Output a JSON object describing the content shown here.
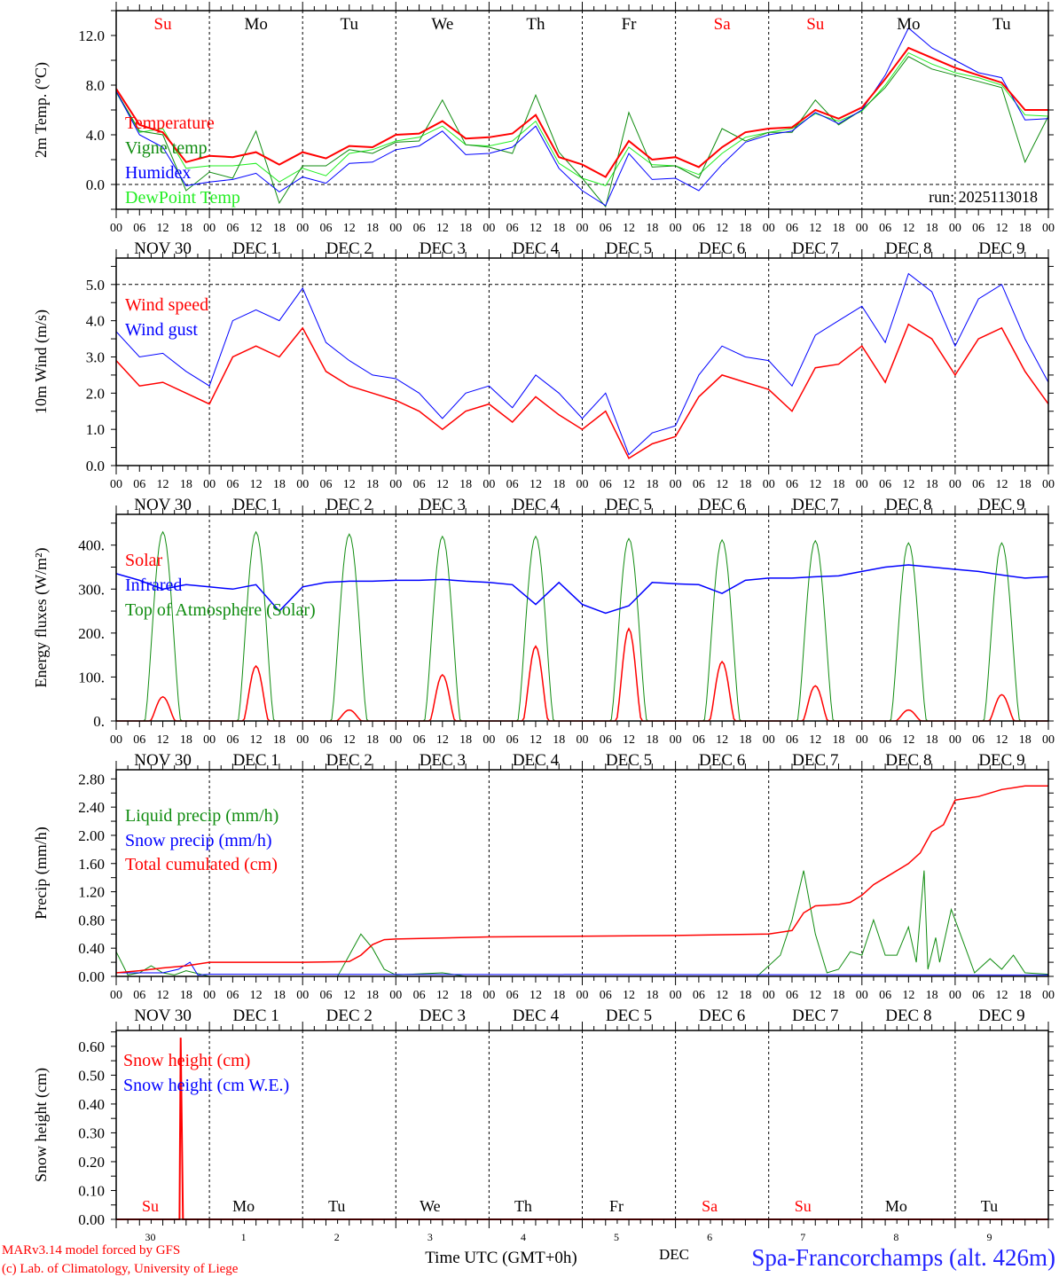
{
  "run_label": "run: 2025113018",
  "day_names": [
    {
      "text": "Su",
      "color": "#ff0000"
    },
    {
      "text": "Mo",
      "color": "#000000"
    },
    {
      "text": "Tu",
      "color": "#000000"
    },
    {
      "text": "We",
      "color": "#000000"
    },
    {
      "text": "Th",
      "color": "#000000"
    },
    {
      "text": "Fr",
      "color": "#000000"
    },
    {
      "text": "Sa",
      "color": "#ff0000"
    },
    {
      "text": "Su",
      "color": "#ff0000"
    },
    {
      "text": "Mo",
      "color": "#000000"
    },
    {
      "text": "Tu",
      "color": "#000000"
    }
  ],
  "date_labels": [
    "NOV 30",
    "DEC  1",
    "DEC  2",
    "DEC  3",
    "DEC  4",
    "DEC  5",
    "DEC  6",
    "DEC  7",
    "DEC  8",
    "DEC  9"
  ],
  "hour_labels": [
    "00",
    "06",
    "12",
    "18"
  ],
  "bottom_day_numbers": [
    "30",
    "1",
    "2",
    "3",
    "4",
    "5",
    "6",
    "7",
    "8",
    "9"
  ],
  "bottom_month": "DEC",
  "xlabel": "Time UTC (GMT+0h)",
  "station": "Spa-Francorchamps (alt. 426m)",
  "credits": [
    "MARv3.14 model forced by GFS",
    "(c) Lab. of Climatology, University of Liege"
  ],
  "chart_data": [
    {
      "type": "line",
      "ylabel": "2m Temp. (°C)",
      "ylim": [
        -2,
        14
      ],
      "minor": 2,
      "dashed_y": 0,
      "yticks": [
        {
          "v": 0,
          "label": "0.0"
        },
        {
          "v": 4,
          "label": "4.0"
        },
        {
          "v": 8,
          "label": "8.0"
        },
        {
          "v": 12,
          "label": "12.0"
        }
      ],
      "x_step_hours": 6,
      "legend": [
        {
          "text": "Temperature",
          "color": "#ff0000"
        },
        {
          "text": "Vigne temp",
          "color": "#108c10"
        },
        {
          "text": "Humidex",
          "color": "#0000ff"
        },
        {
          "text": "DewPoint Temp",
          "color": "#22ee22"
        }
      ],
      "series": [
        {
          "name": "DewPoint Temp",
          "color": "#22ee22",
          "width": 1,
          "values": [
            7.4,
            4.2,
            4.5,
            1.3,
            1.5,
            1.5,
            1.7,
            0.2,
            1.3,
            0.7,
            2.5,
            2.8,
            3.5,
            3.8,
            4.7,
            3.2,
            3.1,
            3.5,
            5.1,
            1.7,
            0.5,
            -0.1,
            3.0,
            1.6,
            1.5,
            0.8,
            2.5,
            3.8,
            4.2,
            4.5,
            5.7,
            5.1,
            5.9,
            8.0,
            10.6,
            9.7,
            9.0,
            8.6,
            8.0,
            5.6,
            5.5
          ]
        },
        {
          "name": "Vigne temp",
          "color": "#108c10",
          "width": 1,
          "values": [
            7.5,
            4.3,
            4.0,
            -0.5,
            1.0,
            0.5,
            4.3,
            -1.5,
            1.5,
            1.5,
            2.8,
            2.5,
            3.4,
            3.5,
            6.8,
            3.2,
            3.0,
            2.5,
            7.2,
            2.6,
            0.5,
            -1.8,
            5.8,
            1.4,
            1.5,
            0.5,
            4.5,
            3.5,
            4.2,
            4.2,
            6.8,
            4.8,
            6.0,
            7.8,
            10.3,
            9.3,
            8.8,
            8.3,
            7.8,
            1.8,
            5.5
          ]
        },
        {
          "name": "Humidex",
          "color": "#0000ff",
          "width": 1,
          "values": [
            7.5,
            4.0,
            3.0,
            -0.1,
            0.2,
            0.4,
            0.9,
            -0.6,
            0.6,
            0.1,
            1.7,
            1.8,
            2.8,
            3.1,
            4.3,
            2.4,
            2.5,
            3.0,
            4.7,
            1.3,
            -0.5,
            -1.7,
            2.5,
            0.4,
            0.5,
            -0.5,
            1.6,
            3.4,
            4.0,
            4.3,
            5.8,
            4.9,
            6.0,
            8.8,
            12.6,
            11.0,
            10.0,
            9.0,
            8.6,
            5.2,
            5.3
          ]
        },
        {
          "name": "Temperature",
          "color": "#ff0000",
          "width": 2,
          "values": [
            7.7,
            4.8,
            4.2,
            1.8,
            2.3,
            2.2,
            2.6,
            1.6,
            2.6,
            2.1,
            3.1,
            3.0,
            4.0,
            4.1,
            5.1,
            3.7,
            3.8,
            4.1,
            5.6,
            2.2,
            1.6,
            0.6,
            3.5,
            2.0,
            2.2,
            1.4,
            3.0,
            4.2,
            4.5,
            4.6,
            6.0,
            5.3,
            6.2,
            8.5,
            11.0,
            10.2,
            9.4,
            8.8,
            8.2,
            6.0,
            6.0
          ]
        }
      ]
    },
    {
      "type": "line",
      "ylabel": "10m Wind (m/s)",
      "ylim": [
        0,
        5.73
      ],
      "minor": 0.5,
      "dashed_y": 5,
      "yticks": [
        {
          "v": 0,
          "label": "0.0"
        },
        {
          "v": 1,
          "label": "1.0"
        },
        {
          "v": 2,
          "label": "2.0"
        },
        {
          "v": 3,
          "label": "3.0"
        },
        {
          "v": 4,
          "label": "4.0"
        },
        {
          "v": 5,
          "label": "5.0"
        }
      ],
      "x_step_hours": 6,
      "legend": [
        {
          "text": "Wind speed",
          "color": "#ff0000"
        },
        {
          "text": "Wind gust",
          "color": "#0000ff"
        }
      ],
      "series": [
        {
          "name": "Wind gust",
          "color": "#0000ff",
          "width": 1,
          "values": [
            3.7,
            3.0,
            3.1,
            2.6,
            2.2,
            4.0,
            4.3,
            4.0,
            4.9,
            3.4,
            2.9,
            2.5,
            2.4,
            2.0,
            1.3,
            2.0,
            2.2,
            1.6,
            2.5,
            2.0,
            1.3,
            2.0,
            0.3,
            0.9,
            1.1,
            2.5,
            3.3,
            3.0,
            2.9,
            2.2,
            3.6,
            4.0,
            4.4,
            3.4,
            5.3,
            4.8,
            3.3,
            4.6,
            5.0,
            3.5,
            2.3
          ]
        },
        {
          "name": "Wind speed",
          "color": "#ff0000",
          "width": 1.5,
          "values": [
            2.9,
            2.2,
            2.3,
            2.0,
            1.7,
            3.0,
            3.3,
            3.0,
            3.8,
            2.6,
            2.2,
            2.0,
            1.8,
            1.5,
            1.0,
            1.5,
            1.7,
            1.2,
            1.9,
            1.4,
            1.0,
            1.5,
            0.2,
            0.6,
            0.8,
            1.9,
            2.5,
            2.3,
            2.1,
            1.5,
            2.7,
            2.8,
            3.3,
            2.3,
            3.9,
            3.5,
            2.5,
            3.5,
            3.8,
            2.6,
            1.7
          ]
        }
      ]
    },
    {
      "type": "line",
      "ylabel": "Energy fluxes (W/m²)",
      "ylim": [
        0,
        470
      ],
      "minor": 50,
      "yticks": [
        {
          "v": 0,
          "label": "0."
        },
        {
          "v": 100,
          "label": "100."
        },
        {
          "v": 200,
          "label": "200."
        },
        {
          "v": 300,
          "label": "300."
        },
        {
          "v": 400,
          "label": "400."
        }
      ],
      "legend": [
        {
          "text": "Solar",
          "color": "#ff0000"
        },
        {
          "text": "Infrared",
          "color": "#0000ff"
        },
        {
          "text": "Top of Atmosphere (Solar)",
          "color": "#108c10"
        }
      ],
      "series": [
        {
          "name": "Top of Atmosphere (Solar)",
          "color": "#108c10",
          "width": 1,
          "daily_peaks": [
            430,
            430,
            425,
            420,
            420,
            415,
            412,
            410,
            405,
            405
          ],
          "half_width_h": 4.6
        },
        {
          "name": "Solar",
          "color": "#ff0000",
          "width": 1.5,
          "daily_peaks": [
            55,
            125,
            25,
            105,
            170,
            210,
            135,
            80,
            25,
            60
          ],
          "half_width_h": 3.2
        },
        {
          "name": "Infrared",
          "color": "#0000ff",
          "width": 1.5,
          "x_step_hours": 6,
          "values": [
            335,
            320,
            300,
            310,
            305,
            300,
            310,
            250,
            305,
            315,
            318,
            318,
            320,
            320,
            322,
            318,
            315,
            310,
            265,
            315,
            265,
            245,
            262,
            315,
            312,
            310,
            290,
            320,
            325,
            325,
            328,
            330,
            340,
            350,
            355,
            350,
            345,
            340,
            332,
            325,
            328
          ]
        }
      ]
    },
    {
      "type": "line",
      "ylabel": "Precip (mm/h)",
      "ylim": [
        0,
        2.93
      ],
      "minor": 0.2,
      "yticks": [
        {
          "v": 0,
          "label": "0.00"
        },
        {
          "v": 0.4,
          "label": "0.40"
        },
        {
          "v": 0.8,
          "label": "0.80"
        },
        {
          "v": 1.2,
          "label": "1.20"
        },
        {
          "v": 1.6,
          "label": "1.60"
        },
        {
          "v": 2.0,
          "label": "2.00"
        },
        {
          "v": 2.4,
          "label": "2.40"
        },
        {
          "v": 2.8,
          "label": "2.80"
        }
      ],
      "legend": [
        {
          "text": "Liquid precip (mm/h)",
          "color": "#108c10"
        },
        {
          "text": "Snow precip (mm/h)",
          "color": "#0000ff"
        },
        {
          "text": "Total cumulated (cm)",
          "color": "#ff0000"
        }
      ],
      "series": [
        {
          "name": "Liquid precip",
          "color": "#108c10",
          "width": 1,
          "points": [
            [
              0,
              0.35
            ],
            [
              3,
              0.02
            ],
            [
              6,
              0.05
            ],
            [
              9,
              0.15
            ],
            [
              12,
              0.05
            ],
            [
              15,
              0.02
            ],
            [
              18,
              0.08
            ],
            [
              24,
              0
            ],
            [
              57,
              0
            ],
            [
              60,
              0.3
            ],
            [
              63,
              0.6
            ],
            [
              66,
              0.4
            ],
            [
              69,
              0.1
            ],
            [
              72,
              0.02
            ],
            [
              84,
              0.05
            ],
            [
              90,
              0
            ],
            [
              165,
              0
            ],
            [
              171,
              0.3
            ],
            [
              174,
              0.8
            ],
            [
              177,
              1.5
            ],
            [
              180,
              0.6
            ],
            [
              183,
              0.05
            ],
            [
              186,
              0.1
            ],
            [
              189,
              0.35
            ],
            [
              192,
              0.3
            ],
            [
              195,
              0.8
            ],
            [
              198,
              0.3
            ],
            [
              201,
              0.3
            ],
            [
              204,
              0.7
            ],
            [
              206,
              0.2
            ],
            [
              208,
              1.5
            ],
            [
              209,
              0.1
            ],
            [
              211,
              0.55
            ],
            [
              212,
              0.2
            ],
            [
              215,
              0.95
            ],
            [
              218,
              0.5
            ],
            [
              221,
              0.05
            ],
            [
              225,
              0.25
            ],
            [
              228,
              0.1
            ],
            [
              231,
              0.3
            ],
            [
              234,
              0.05
            ],
            [
              240,
              0.03
            ]
          ]
        },
        {
          "name": "Snow precip",
          "color": "#0000ff",
          "width": 1,
          "points": [
            [
              0,
              0.05
            ],
            [
              12,
              0.05
            ],
            [
              16,
              0.1
            ],
            [
              19,
              0.2
            ],
            [
              21,
              0.02
            ],
            [
              24,
              0.03
            ],
            [
              240,
              0.02
            ]
          ]
        },
        {
          "name": "Total cumulated",
          "color": "#ff0000",
          "width": 1.5,
          "points": [
            [
              0,
              0.05
            ],
            [
              6,
              0.08
            ],
            [
              12,
              0.12
            ],
            [
              18,
              0.15
            ],
            [
              24,
              0.2
            ],
            [
              48,
              0.2
            ],
            [
              60,
              0.21
            ],
            [
              63,
              0.3
            ],
            [
              66,
              0.45
            ],
            [
              69,
              0.52
            ],
            [
              72,
              0.53
            ],
            [
              96,
              0.56
            ],
            [
              144,
              0.58
            ],
            [
              168,
              0.6
            ],
            [
              174,
              0.65
            ],
            [
              177,
              0.9
            ],
            [
              180,
              1.0
            ],
            [
              186,
              1.02
            ],
            [
              189,
              1.05
            ],
            [
              192,
              1.15
            ],
            [
              195,
              1.3
            ],
            [
              198,
              1.4
            ],
            [
              204,
              1.6
            ],
            [
              207,
              1.75
            ],
            [
              210,
              2.05
            ],
            [
              213,
              2.15
            ],
            [
              216,
              2.5
            ],
            [
              222,
              2.55
            ],
            [
              228,
              2.65
            ],
            [
              234,
              2.7
            ],
            [
              240,
              2.7
            ]
          ]
        }
      ]
    },
    {
      "type": "line",
      "ylabel": "Snow height (cm)",
      "ylim": [
        0,
        0.655
      ],
      "minor": 0.05,
      "yticks": [
        {
          "v": 0,
          "label": "0.00"
        },
        {
          "v": 0.1,
          "label": "0.10"
        },
        {
          "v": 0.2,
          "label": "0.20"
        },
        {
          "v": 0.3,
          "label": "0.30"
        },
        {
          "v": 0.4,
          "label": "0.40"
        },
        {
          "v": 0.5,
          "label": "0.50"
        },
        {
          "v": 0.6,
          "label": "0.60"
        }
      ],
      "legend": [
        {
          "text": "Snow height (cm)",
          "color": "#ff0000"
        },
        {
          "text": "Snow height (cm W.E.)",
          "color": "#0000ff"
        }
      ],
      "series": [
        {
          "name": "Snow height (cm W.E.)",
          "color": "#0000ff",
          "width": 1,
          "points": [
            [
              0,
              0
            ],
            [
              240,
              0
            ]
          ]
        },
        {
          "name": "Snow height (cm)",
          "color": "#ff0000",
          "width": 2,
          "points": [
            [
              0,
              0
            ],
            [
              16.3,
              0
            ],
            [
              16.6,
              0.63
            ],
            [
              17.2,
              0
            ],
            [
              240,
              0
            ]
          ]
        }
      ]
    }
  ]
}
